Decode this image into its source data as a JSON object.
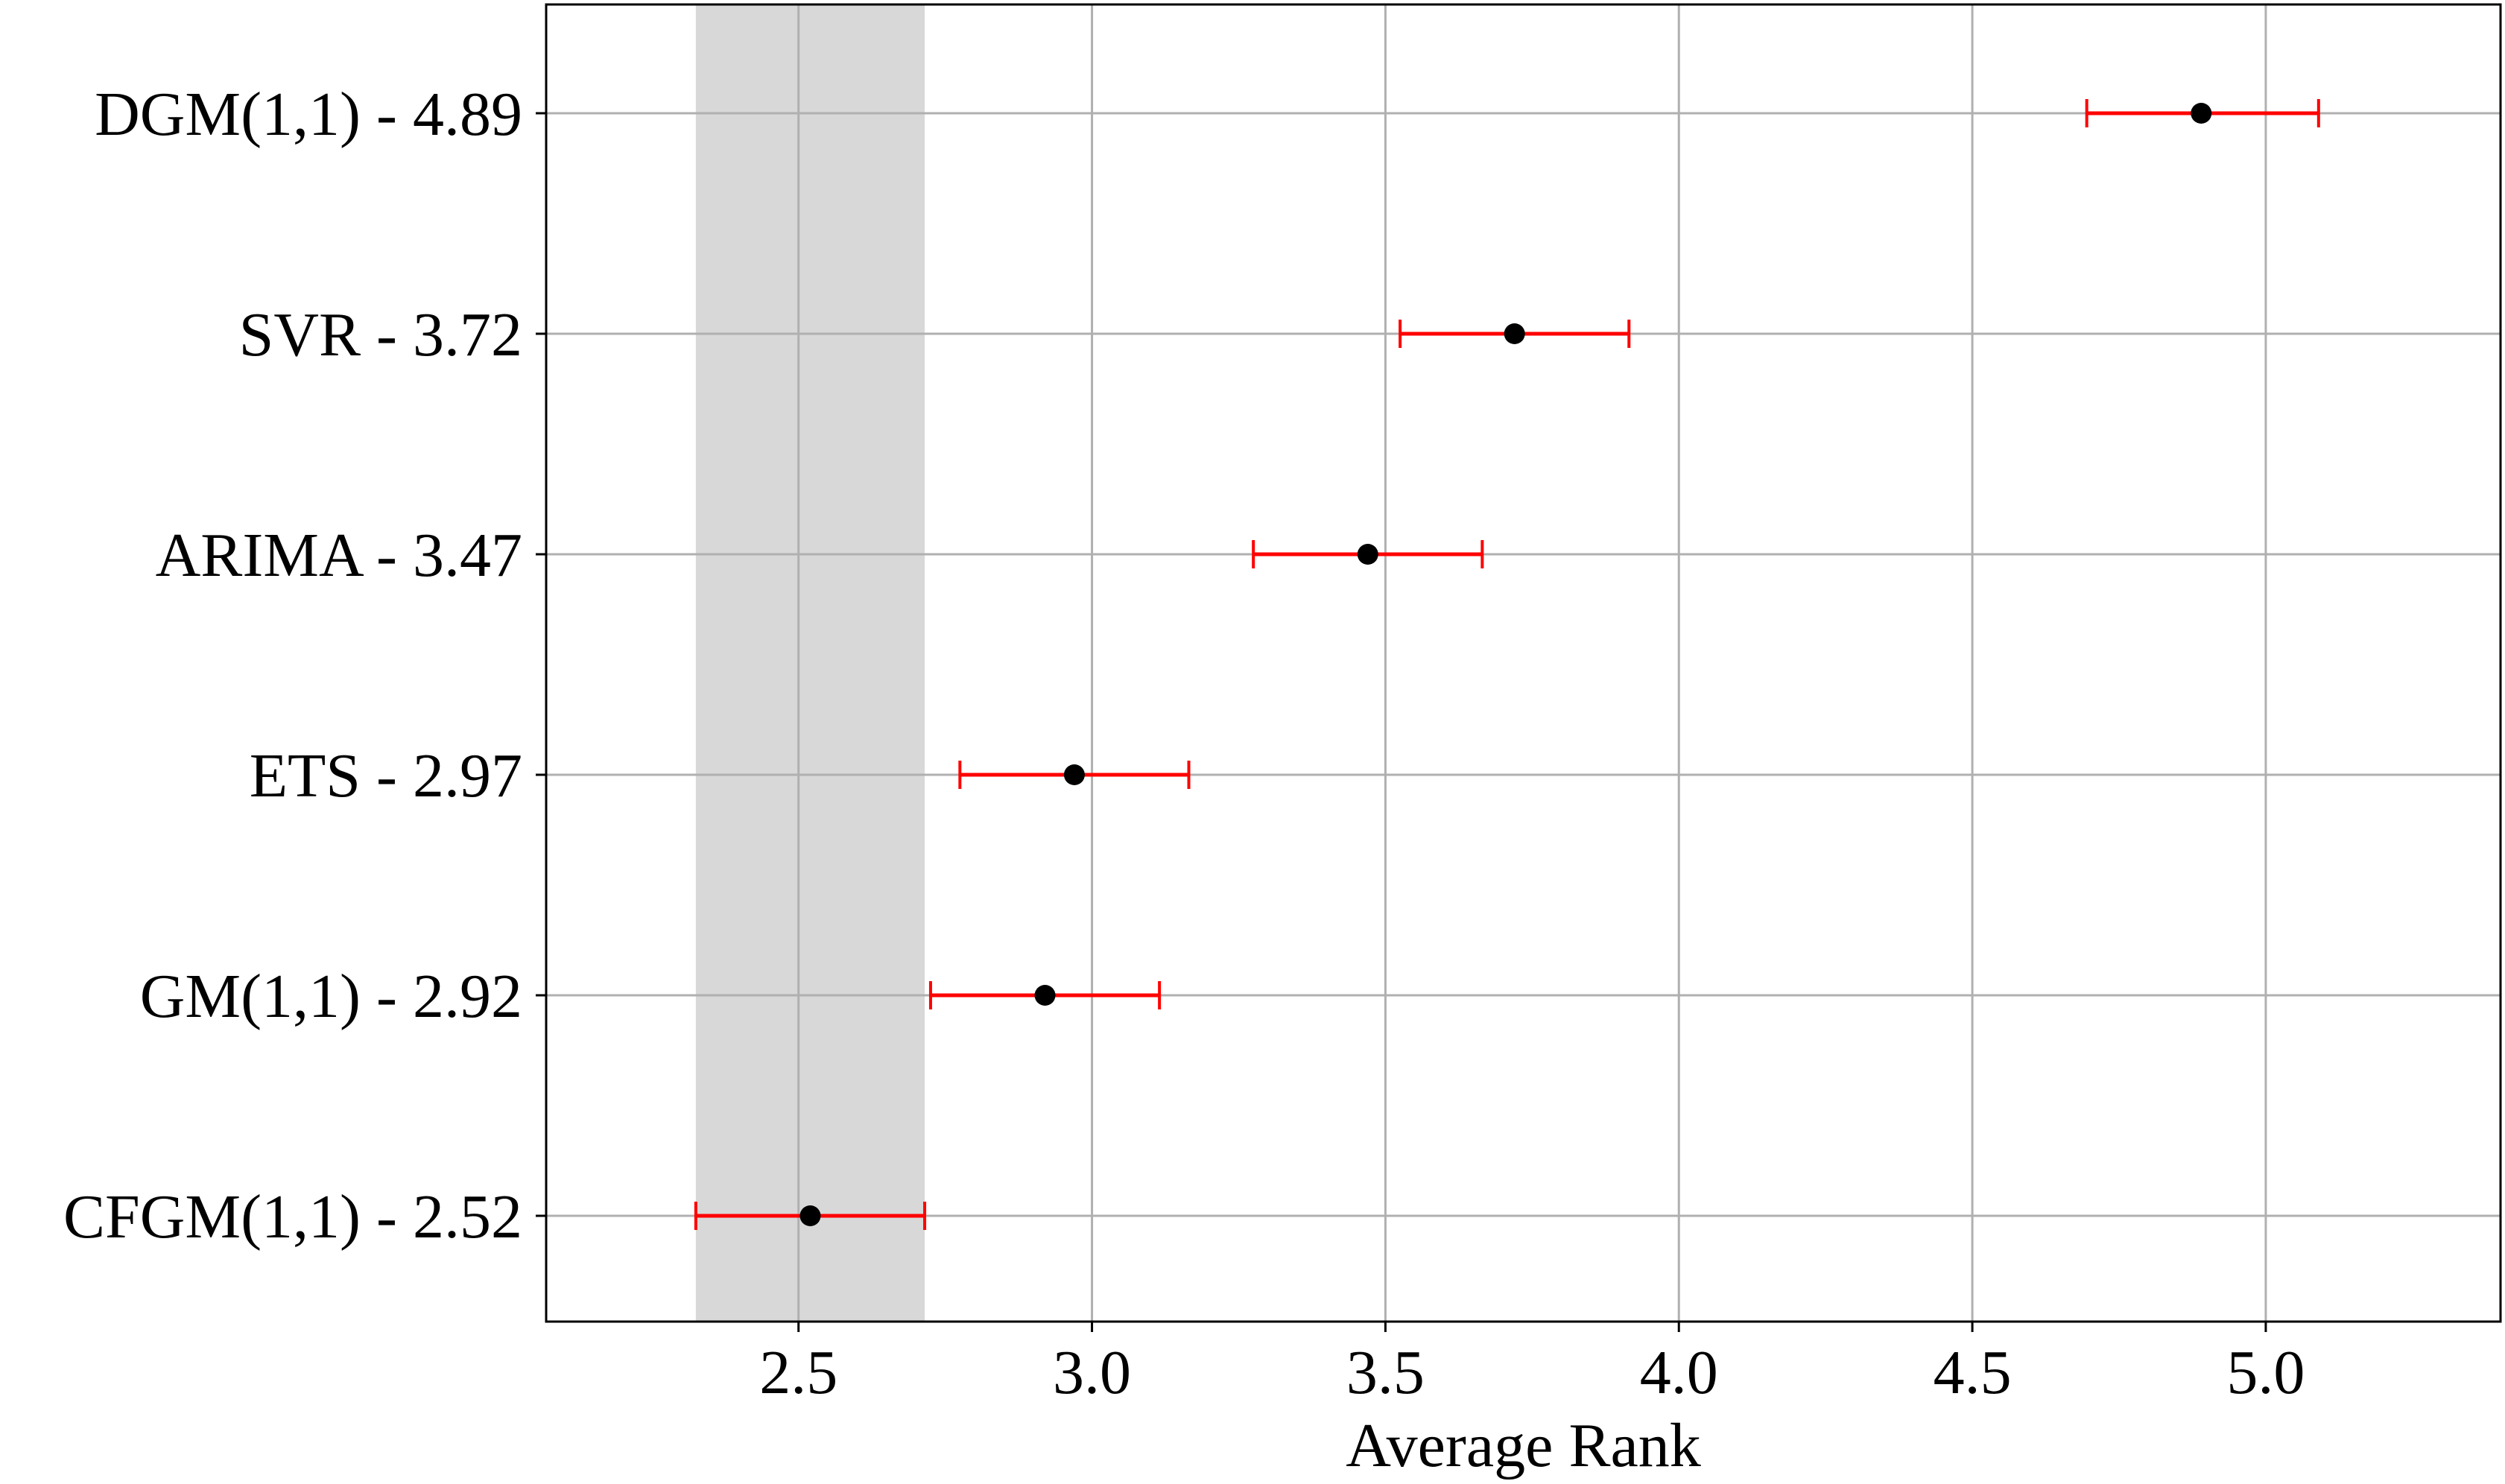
{
  "chart_data": {
    "type": "scatter",
    "subtype": "error-bar-dot-plot",
    "title": "",
    "xlabel": "Average Rank",
    "ylabel": "",
    "xlim": [
      2.07,
      5.4
    ],
    "xticks": [
      2.5,
      3.0,
      3.5,
      4.0,
      4.5,
      5.0
    ],
    "xtick_labels": [
      "2.5",
      "3.0",
      "3.5",
      "4.0",
      "4.5",
      "5.0"
    ],
    "grid": true,
    "categories": [
      "DGM(1,1) - 4.89",
      "SVR - 3.72",
      "ARIMA - 3.47",
      "ETS - 2.97",
      "GM(1,1) - 2.92",
      "CFGM(1,1) - 2.52"
    ],
    "series": [
      {
        "values": [
          4.89,
          3.72,
          3.47,
          2.97,
          2.92,
          2.52
        ],
        "error_low": [
          4.695,
          3.525,
          3.275,
          2.775,
          2.725,
          2.325
        ],
        "error_high": [
          5.09,
          3.915,
          3.665,
          3.165,
          3.115,
          2.715
        ]
      }
    ],
    "shaded_region": [
      2.325,
      2.715
    ],
    "colors": {
      "point": "#000000",
      "error_bar": "#ff0000",
      "shaded_region": "#d8d8d8",
      "grid": "#b0b0b0",
      "axes": "#000000"
    }
  }
}
